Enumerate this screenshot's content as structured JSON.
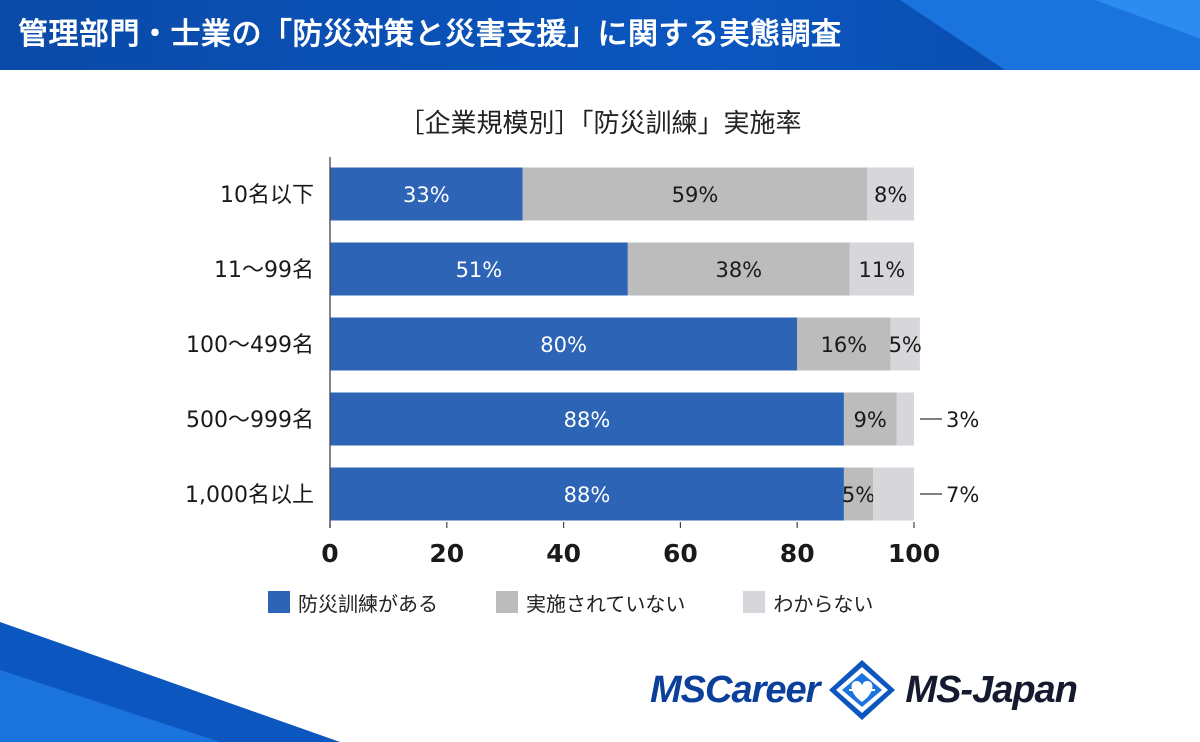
{
  "header": {
    "title": "管理部門・士業の「防災対策と災害支援」に関する実態調査"
  },
  "chart_data": {
    "type": "bar",
    "orientation": "horizontal",
    "stacked": true,
    "title": "［企業規模別］「防災訓練」実施率",
    "categories": [
      "10名以下",
      "11～99名",
      "100～499名",
      "500～999名",
      "1,000名以上"
    ],
    "series": [
      {
        "name": "防災訓練がある",
        "values": [
          33,
          51,
          80,
          88,
          88
        ],
        "labels": [
          "33%",
          "51%",
          "80%",
          "88%",
          "88%"
        ],
        "color": "#2d64b5",
        "label_color": "#ffffff"
      },
      {
        "name": "実施されていない",
        "values": [
          59,
          38,
          16,
          9,
          5
        ],
        "labels": [
          "59%",
          "38%",
          "16%",
          "9%",
          "5%"
        ],
        "color": "#bcbcbc",
        "label_color": "#1a1a1a"
      },
      {
        "name": "わからない",
        "values": [
          8,
          11,
          5,
          3,
          7
        ],
        "labels": [
          "8%",
          "11%",
          "5%",
          "3%",
          "7%"
        ],
        "color": "#d6d6db",
        "label_color": "#1a1a1a",
        "outside": [
          false,
          false,
          false,
          true,
          true
        ]
      }
    ],
    "xlim": [
      0,
      100
    ],
    "xticks": [
      "0",
      "20",
      "40",
      "60",
      "80",
      "100"
    ],
    "grid": false,
    "legend_position": "bottom"
  },
  "logos": {
    "left": "MSCareer",
    "right": "MS-Japan",
    "mark": "diamond-heart-logo"
  }
}
